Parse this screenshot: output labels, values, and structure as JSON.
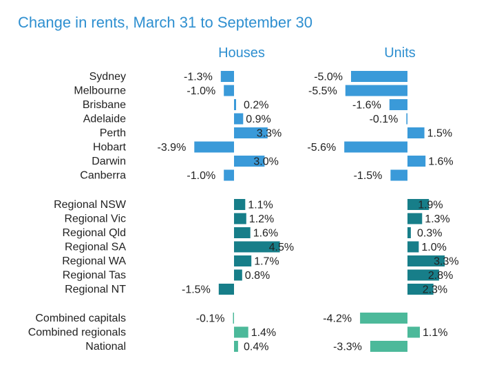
{
  "title": "Change in rents, March 31 to September 30",
  "colors": {
    "capital": "#3a9ad9",
    "regional": "#177e89",
    "summary": "#4cb99a",
    "title": "#2e8fd0"
  },
  "chart_data": {
    "type": "bar",
    "orientation": "horizontal",
    "title": "Change in rents, March 31 to September 30",
    "unit": "%",
    "categories": [
      "Sydney",
      "Melbourne",
      "Brisbane",
      "Adelaide",
      "Perth",
      "Hobart",
      "Darwin",
      "Canberra",
      "Regional NSW",
      "Regional Vic",
      "Regional Qld",
      "Regional SA",
      "Regional WA",
      "Regional Tas",
      "Regional NT",
      "Combined capitals",
      "Combined regionals",
      "National"
    ],
    "groups": [
      {
        "name": "capitals",
        "start": 0,
        "count": 8,
        "color_key": "capital"
      },
      {
        "name": "regionals",
        "start": 8,
        "count": 7,
        "color_key": "regional"
      },
      {
        "name": "summary",
        "start": 15,
        "count": 3,
        "color_key": "summary"
      }
    ],
    "series": [
      {
        "name": "Houses",
        "values": [
          -1.3,
          -1.0,
          0.2,
          0.9,
          3.3,
          -3.9,
          3.0,
          -1.0,
          1.1,
          1.2,
          1.6,
          4.5,
          1.7,
          0.8,
          -1.5,
          -0.1,
          1.4,
          0.4
        ],
        "labels": [
          "-1.3%",
          "-1.0%",
          "0.2%",
          "0.9%",
          "3.3%",
          "-3.9%",
          "3.0%",
          "-1.0%",
          "1.1%",
          "1.2%",
          "1.6%",
          "4.5%",
          "1.7%",
          "0.8%",
          "-1.5%",
          "-0.1%",
          "1.4%",
          "0.4%"
        ]
      },
      {
        "name": "Units",
        "values": [
          -5.0,
          -5.5,
          -1.6,
          -0.1,
          1.5,
          -5.6,
          1.6,
          -1.5,
          1.9,
          1.3,
          0.3,
          1.0,
          3.3,
          2.8,
          2.3,
          -4.2,
          1.1,
          -3.3
        ],
        "labels": [
          "-5.0%",
          "-5.5%",
          "-1.6%",
          "-0.1%",
          "1.5%",
          "-5.6%",
          "1.6%",
          "-1.5%",
          "1.9%",
          "1.3%",
          "0.3%",
          "1.0%",
          "3.3%",
          "2.8%",
          "2.3%",
          "-4.2%",
          "1.1%",
          "-3.3%"
        ]
      }
    ]
  }
}
